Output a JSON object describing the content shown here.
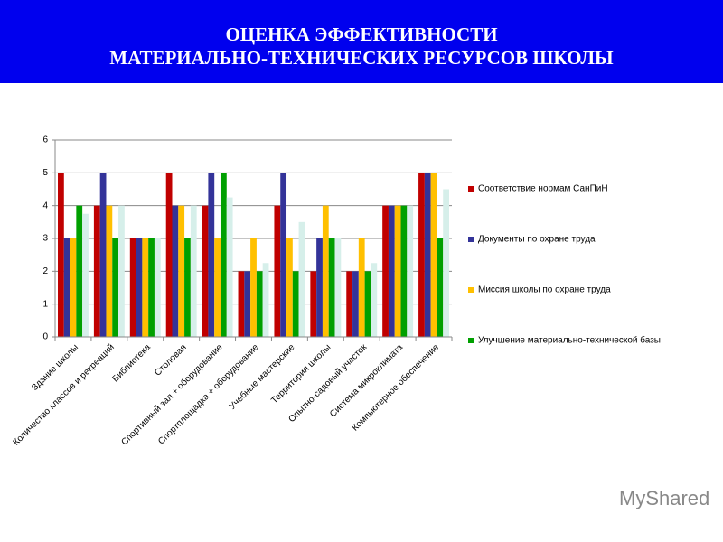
{
  "chart_data": {
    "type": "bar",
    "title": [
      "ОЦЕНКА ЭФФЕКТИВНОСТИ",
      "МАТЕРИАЛЬНО-ТЕХНИЧЕСКИХ РЕСУРСОВ ШКОЛЫ"
    ],
    "categories": [
      "Здание школы",
      "Количество классов и рекреаций",
      "Библиотека",
      "Столовая",
      "Спортивный зал + оборудование",
      "Спортплощадка + оборудование",
      "Учебные мастерские",
      "Территория школы",
      "Опытно-садовый участок",
      "Система микроклимата",
      "Компьютерное обеспечение"
    ],
    "series": [
      {
        "name": "Соответствие  нормам СанПиН",
        "color": "#c00000",
        "values": [
          5,
          4,
          3,
          5,
          4,
          2,
          4,
          2,
          2,
          4,
          5
        ]
      },
      {
        "name": "Документы  по охране труда",
        "color": "#333399",
        "values": [
          3,
          5,
          3,
          4,
          5,
          2,
          5,
          3,
          2,
          4,
          5
        ]
      },
      {
        "name": "Миссия школы по охране труда",
        "color": "#ffc000",
        "values": [
          3,
          4,
          3,
          4,
          3,
          3,
          3,
          4,
          3,
          4,
          5
        ]
      },
      {
        "name": "Улучшение  материально-технической базы",
        "color": "#00a000",
        "values": [
          4,
          3,
          3,
          3,
          5,
          2,
          2,
          3,
          2,
          4,
          3
        ]
      },
      {
        "color": "#d6efea",
        "values": [
          3.75,
          4,
          3,
          4,
          4.25,
          2.25,
          3.5,
          3,
          2.25,
          4,
          4.5
        ]
      }
    ],
    "ylim": [
      0,
      6
    ],
    "yticks": [
      0,
      1,
      2,
      3,
      4,
      5,
      6
    ],
    "grid": true
  },
  "watermark": "MyShared"
}
